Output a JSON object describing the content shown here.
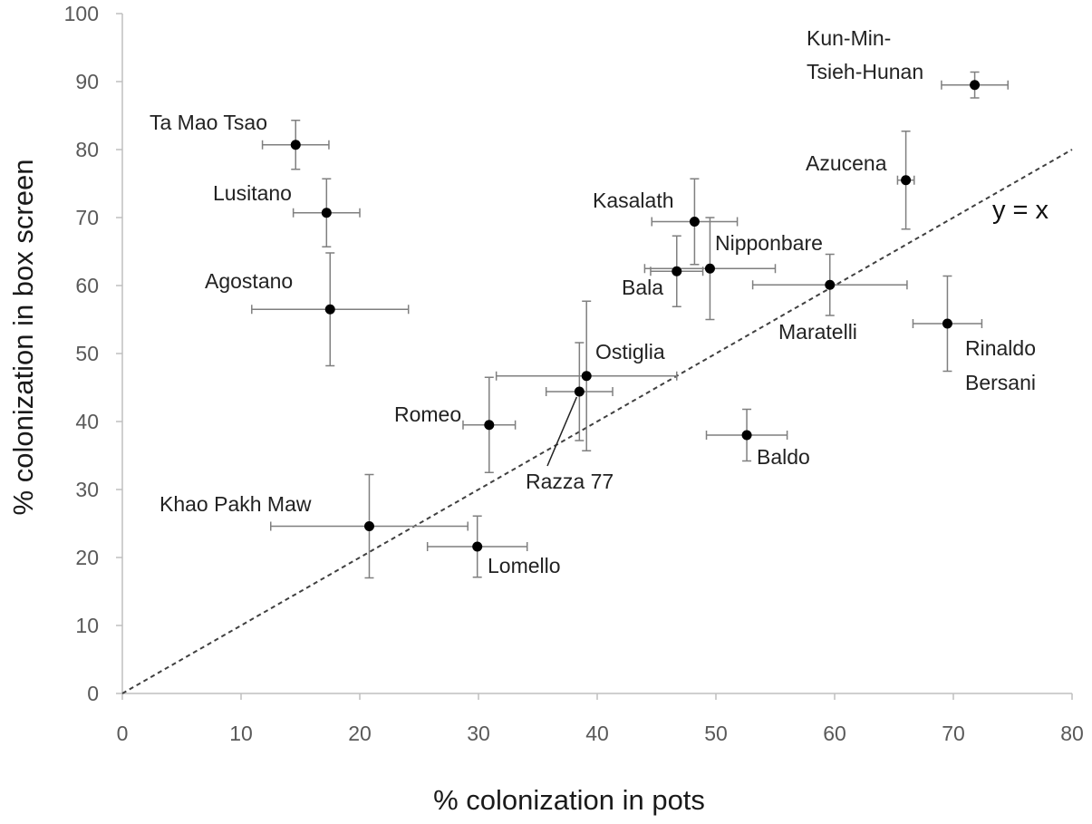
{
  "chart_data": {
    "type": "scatter",
    "title": "",
    "xlabel": "% colonization in pots",
    "ylabel": "% colonization in box screen",
    "xlim": [
      0,
      80
    ],
    "ylim": [
      0,
      100
    ],
    "x_ticks": [
      "0",
      "10",
      "20",
      "30",
      "40",
      "50",
      "60",
      "70",
      "80"
    ],
    "y_ticks": [
      "0",
      "10",
      "20",
      "30",
      "40",
      "50",
      "60",
      "70",
      "80",
      "90",
      "100"
    ],
    "grid": false,
    "marker_color": "#000000",
    "errorbar_color": "#7f7f7f",
    "reference_line": {
      "label": "y = x",
      "slope": 1,
      "intercept": 0,
      "style": "dashed",
      "color": "#404040"
    },
    "points": [
      {
        "name": "Kun-Min-Tsieh-Hunan",
        "label_lines": [
          "Kun-Min-",
          "Tsieh-Hunan"
        ],
        "x": 71.8,
        "y": 89.5,
        "x_err": 2.8,
        "y_err": 1.9
      },
      {
        "name": "Ta Mao Tsao",
        "label_lines": [
          "Ta Mao Tsao"
        ],
        "x": 14.6,
        "y": 80.7,
        "x_err": 2.8,
        "y_err": 3.6
      },
      {
        "name": "Azucena",
        "label_lines": [
          "Azucena"
        ],
        "x": 66.0,
        "y": 75.5,
        "x_err": 0.7,
        "y_err": 7.2
      },
      {
        "name": "Lusitano",
        "label_lines": [
          "Lusitano"
        ],
        "x": 17.2,
        "y": 70.7,
        "x_err": 2.8,
        "y_err": 5.0
      },
      {
        "name": "Kasalath",
        "label_lines": [
          "Kasalath"
        ],
        "x": 48.2,
        "y": 69.4,
        "x_err": 3.6,
        "y_err": 6.3
      },
      {
        "name": "Nipponbare",
        "label_lines": [
          "Nipponbare"
        ],
        "x": 49.5,
        "y": 62.5,
        "x_err": 5.5,
        "y_err": 7.5
      },
      {
        "name": "Bala",
        "label_lines": [
          "Bala"
        ],
        "x": 46.7,
        "y": 62.1,
        "x_err": 2.2,
        "y_err": 5.2
      },
      {
        "name": "Maratelli",
        "label_lines": [
          "Maratelli"
        ],
        "x": 59.6,
        "y": 60.1,
        "x_err": 6.5,
        "y_err": 4.5
      },
      {
        "name": "Agostano",
        "label_lines": [
          "Agostano"
        ],
        "x": 17.5,
        "y": 56.5,
        "x_err": 6.6,
        "y_err": 8.3
      },
      {
        "name": "Rinaldo Bersani",
        "label_lines": [
          "Rinaldo",
          "Bersani"
        ],
        "x": 69.5,
        "y": 54.4,
        "x_err": 2.9,
        "y_err": 7.0
      },
      {
        "name": "Ostiglia",
        "label_lines": [
          "Ostiglia"
        ],
        "x": 39.1,
        "y": 46.7,
        "x_err": 7.6,
        "y_err": 11.0
      },
      {
        "name": "Razza 77",
        "label_lines": [
          "Razza 77"
        ],
        "x": 38.5,
        "y": 44.4,
        "x_err": 2.8,
        "y_err": 7.2
      },
      {
        "name": "Romeo",
        "label_lines": [
          "Romeo"
        ],
        "x": 30.9,
        "y": 39.5,
        "x_err": 2.2,
        "y_err": 7.0
      },
      {
        "name": "Baldo",
        "label_lines": [
          "Baldo"
        ],
        "x": 52.6,
        "y": 38.0,
        "x_err": 3.4,
        "y_err": 3.8
      },
      {
        "name": "Khao Pakh Maw",
        "label_lines": [
          "Khao Pakh Maw"
        ],
        "x": 20.8,
        "y": 24.6,
        "x_err": 8.3,
        "y_err": 7.6
      },
      {
        "name": "Lomello",
        "label_lines": [
          "Lomello"
        ],
        "x": 29.9,
        "y": 21.6,
        "x_err": 4.2,
        "y_err": 4.5
      }
    ]
  }
}
